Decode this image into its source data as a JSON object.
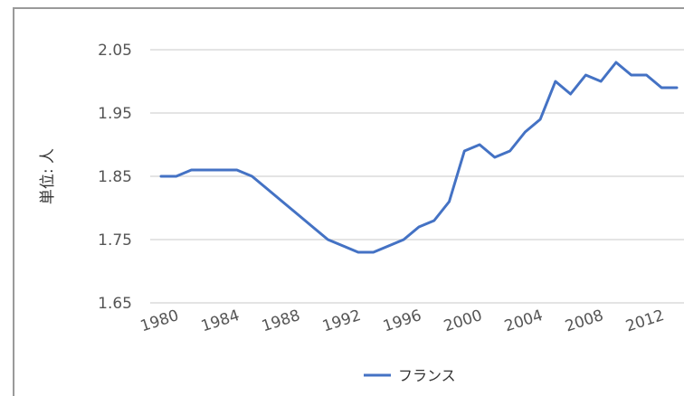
{
  "chart_data": {
    "type": "line",
    "title": "",
    "xlabel": "",
    "ylabel": "単位: 人",
    "ylim": [
      1.65,
      2.05
    ],
    "yticks": [
      "2.05",
      "1.95",
      "1.85",
      "1.75",
      "1.65"
    ],
    "xticks": [
      "1980",
      "1984",
      "1988",
      "1992",
      "1996",
      "2000",
      "2004",
      "2008",
      "2012"
    ],
    "grid": true,
    "legend_position": "bottom",
    "series": [
      {
        "name": "フランス",
        "color": "#4472c4",
        "x": [
          1980,
          1981,
          1982,
          1983,
          1984,
          1985,
          1986,
          1987,
          1988,
          1989,
          1990,
          1991,
          1992,
          1993,
          1994,
          1995,
          1996,
          1997,
          1998,
          1999,
          2000,
          2001,
          2002,
          2003,
          2004,
          2005,
          2006,
          2007,
          2008,
          2009,
          2010,
          2011,
          2012,
          2013,
          2014
        ],
        "values": [
          1.85,
          1.85,
          1.86,
          1.86,
          1.86,
          1.86,
          1.85,
          1.83,
          1.81,
          1.79,
          1.77,
          1.75,
          1.74,
          1.73,
          1.73,
          1.74,
          1.75,
          1.77,
          1.78,
          1.81,
          1.89,
          1.9,
          1.88,
          1.89,
          1.92,
          1.94,
          2.0,
          1.98,
          2.01,
          2.0,
          2.03,
          2.01,
          2.01,
          1.99,
          1.99
        ]
      }
    ]
  }
}
